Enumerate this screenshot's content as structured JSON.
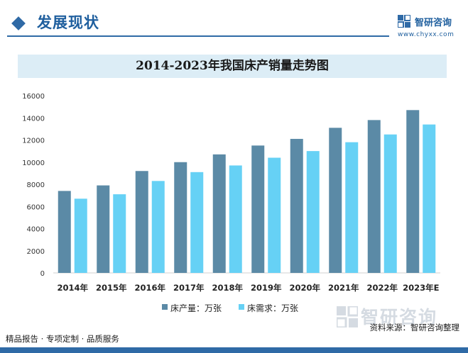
{
  "header": {
    "section_title": "发展现状",
    "logo_name": "智研咨询",
    "logo_url": "www.chyxx.com"
  },
  "watermark_text": "智研咨询",
  "source": "资料来源：智研咨询整理",
  "footer": {
    "text": "精品报告 · 专项定制 · 品质服务"
  },
  "colors": {
    "accent": "#2f6aa6",
    "series1": "#5b8aa6",
    "series2": "#66d1f5",
    "title_band": "#dcedf6"
  },
  "chart_data": {
    "type": "bar",
    "title": "2014-2023年我国床产销量走势图",
    "categories": [
      "2014年",
      "2015年",
      "2016年",
      "2017年",
      "2018年",
      "2019年",
      "2020年",
      "2021年",
      "2022年",
      "2023年E"
    ],
    "series": [
      {
        "name": "床产量：万张",
        "values": [
          7400,
          7900,
          9200,
          10000,
          10700,
          11500,
          12100,
          13100,
          13800,
          14700
        ]
      },
      {
        "name": "床需求：万张",
        "values": [
          6700,
          7100,
          8300,
          9100,
          9700,
          10400,
          11000,
          11800,
          12500,
          13400
        ]
      }
    ],
    "xlabel": "",
    "ylabel": "",
    "ylim": [
      0,
      16000
    ],
    "yticks": [
      "0",
      "2000",
      "4000",
      "6000",
      "8000",
      "10000",
      "12000",
      "14000",
      "16000"
    ],
    "grid": false,
    "legend": "bottom-center"
  }
}
